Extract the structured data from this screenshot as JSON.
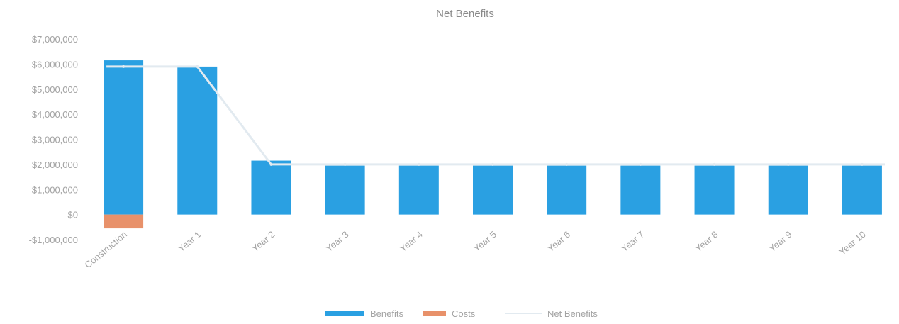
{
  "chart_data": {
    "type": "bar",
    "title": "Net Benefits",
    "categories": [
      "Construction",
      "Year 1",
      "Year 2",
      "Year 3",
      "Year 4",
      "Year 5",
      "Year 6",
      "Year 7",
      "Year 8",
      "Year 9",
      "Year 10"
    ],
    "series": [
      {
        "name": "Benefits",
        "type": "bar",
        "color": "#2aa0e2",
        "values": [
          6150000,
          5900000,
          2150000,
          1950000,
          1950000,
          1950000,
          1950000,
          1950000,
          1950000,
          1950000,
          1950000
        ]
      },
      {
        "name": "Costs",
        "type": "bar",
        "color": "#e8916a",
        "values": [
          -550000,
          0,
          0,
          0,
          0,
          0,
          0,
          0,
          0,
          0,
          0
        ]
      },
      {
        "name": "Net Benefits",
        "type": "line",
        "color": "#e2eaf0",
        "values": [
          5900000,
          5900000,
          2000000,
          2000000,
          2000000,
          2000000,
          2000000,
          2000000,
          2000000,
          2000000,
          2000000
        ]
      }
    ],
    "yticks": [
      -1000000,
      0,
      1000000,
      2000000,
      3000000,
      4000000,
      5000000,
      6000000,
      7000000
    ],
    "ytick_labels": [
      "-$1,000,000",
      "$0",
      "$1,000,000",
      "$2,000,000",
      "$3,000,000",
      "$4,000,000",
      "$5,000,000",
      "$6,000,000",
      "$7,000,000"
    ],
    "ylim": [
      -1000000,
      7000000
    ],
    "xlabel": "",
    "ylabel": "",
    "grid": false,
    "legend_position": "bottom-center"
  }
}
